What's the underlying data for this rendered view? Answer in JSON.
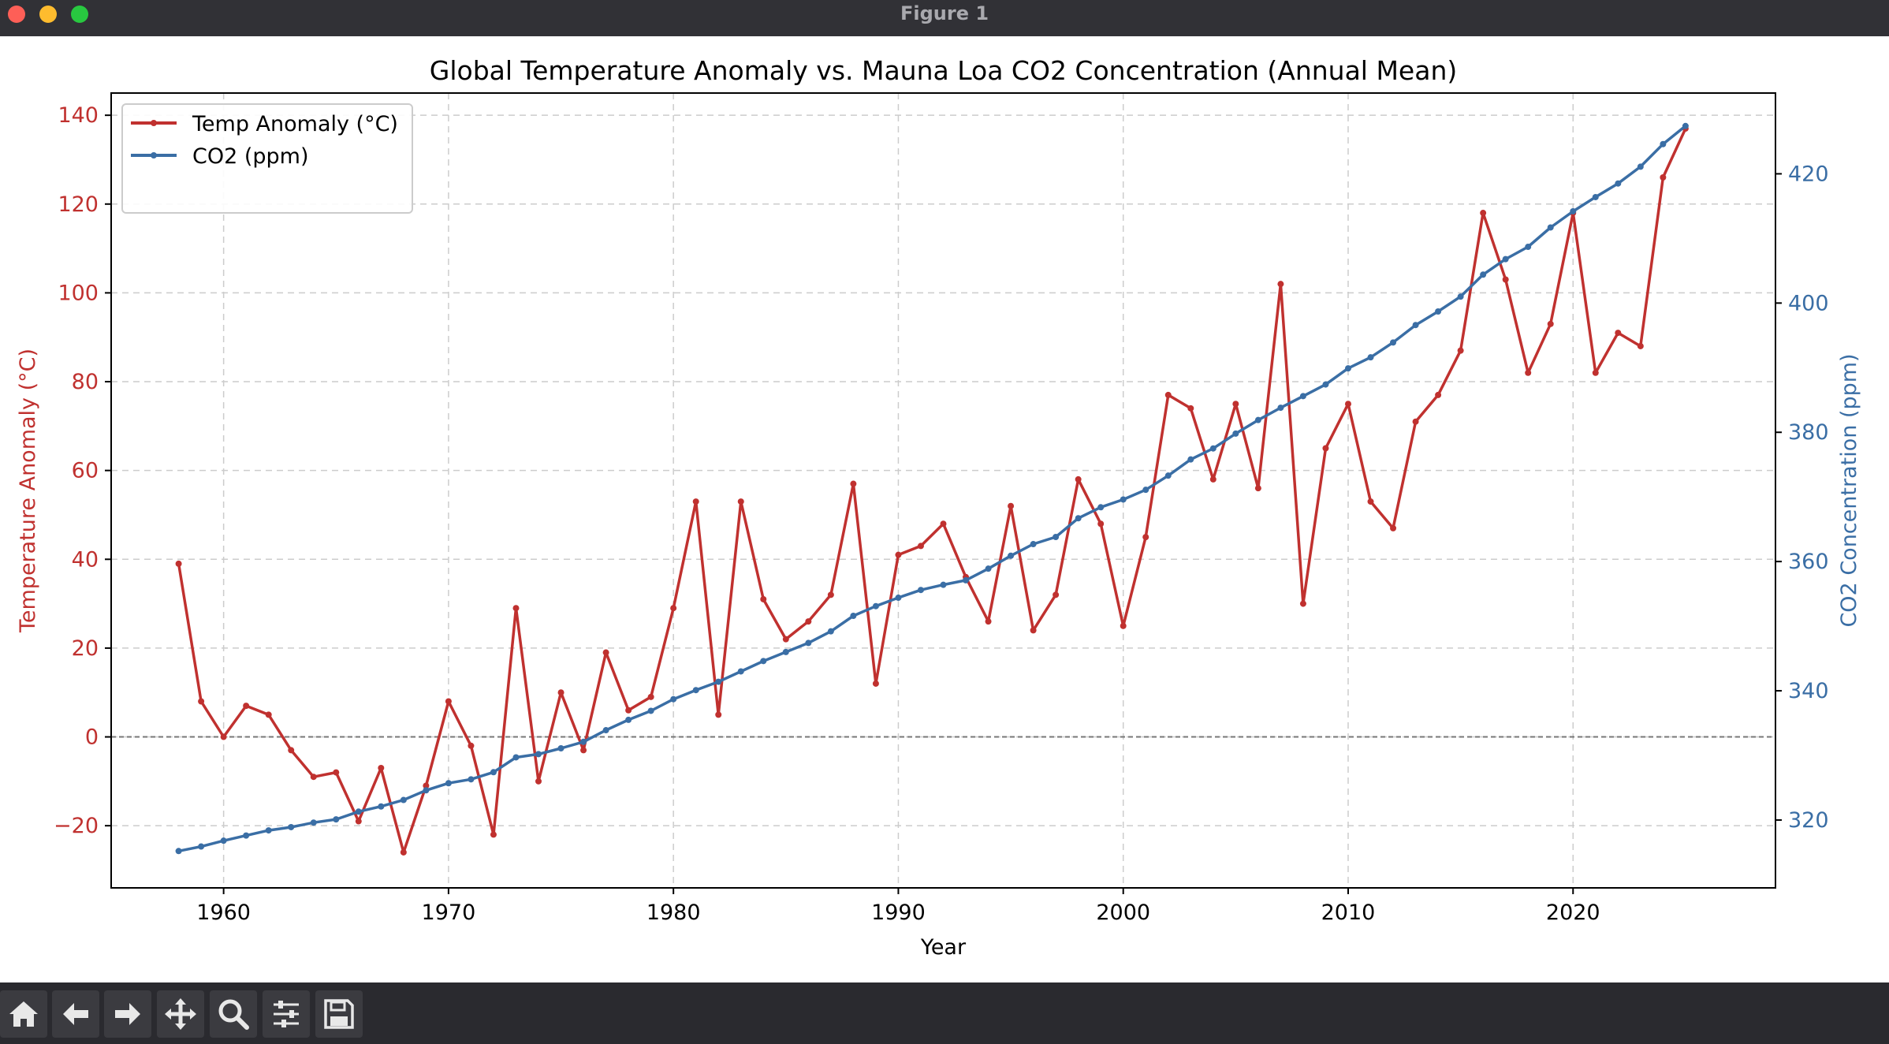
{
  "window": {
    "title": "Figure 1"
  },
  "toolbar": {
    "buttons": [
      {
        "name": "home-button",
        "icon": "home-icon"
      },
      {
        "name": "back-button",
        "icon": "arrow-left-icon"
      },
      {
        "name": "forward-button",
        "icon": "arrow-right-icon"
      },
      {
        "name": "pan-button",
        "icon": "move-icon"
      },
      {
        "name": "zoom-button",
        "icon": "magnifier-icon"
      },
      {
        "name": "configure-subplots-button",
        "icon": "sliders-icon"
      },
      {
        "name": "save-button",
        "icon": "floppy-disk-icon"
      }
    ]
  },
  "chart_data": {
    "type": "line",
    "title": "Global Temperature Anomaly vs. Mauna Loa CO2 Concentration (Annual Mean)",
    "xlabel": "Year",
    "ylabel": "Temperature Anomaly (°C)",
    "y2label": "CO2 Concentration (ppm)",
    "xlim": [
      1955,
      2029
    ],
    "ylim": [
      -34,
      145
    ],
    "y2lim": [
      309.5,
      432.5
    ],
    "xticks": [
      1960,
      1970,
      1980,
      1990,
      2000,
      2010,
      2020
    ],
    "yticks": [
      -20,
      0,
      20,
      40,
      60,
      80,
      100,
      120,
      140
    ],
    "y2ticks": [
      320,
      340,
      360,
      380,
      400,
      420
    ],
    "grid": true,
    "zero_line": 0,
    "legend_placement": "upper-left",
    "colors": {
      "temp": "#c0312f",
      "co2": "#3a6ea5",
      "grid": "#cccccc",
      "zero": "#777777"
    },
    "x": [
      1958,
      1959,
      1960,
      1961,
      1962,
      1963,
      1964,
      1965,
      1966,
      1967,
      1968,
      1969,
      1970,
      1971,
      1972,
      1973,
      1974,
      1975,
      1976,
      1977,
      1978,
      1979,
      1980,
      1981,
      1982,
      1983,
      1984,
      1985,
      1986,
      1987,
      1988,
      1989,
      1990,
      1991,
      1992,
      1993,
      1994,
      1995,
      1996,
      1997,
      1998,
      1999,
      2000,
      2001,
      2002,
      2003,
      2004,
      2005,
      2006,
      2007,
      2008,
      2009,
      2010,
      2011,
      2012,
      2013,
      2014,
      2015,
      2016,
      2017,
      2018,
      2019,
      2020,
      2021,
      2022,
      2023,
      2024,
      2025
    ],
    "series": [
      {
        "name": "Temp Anomaly (°C)",
        "axis": "left",
        "values": [
          39,
          8,
          0,
          7,
          5,
          -3,
          -9,
          -8,
          -19,
          -7,
          -26,
          -11,
          8,
          -2,
          -22,
          29,
          -10,
          10,
          -3,
          19,
          6,
          9,
          29,
          53,
          5,
          53,
          31,
          22,
          26,
          32,
          57,
          12,
          41,
          43,
          48,
          36,
          26,
          52,
          24,
          32,
          58,
          48,
          25,
          45,
          77,
          74,
          58,
          75,
          56,
          102,
          30,
          65,
          75,
          53,
          47,
          71,
          77,
          87,
          118,
          103,
          82,
          93,
          118,
          82,
          91,
          88,
          126,
          137
        ]
      },
      {
        "name": "CO2 (ppm)",
        "axis": "right",
        "values": [
          315.2,
          315.9,
          316.8,
          317.6,
          318.4,
          318.9,
          319.6,
          320.1,
          321.3,
          322.1,
          323.1,
          324.6,
          325.7,
          326.3,
          327.4,
          329.7,
          330.2,
          331.1,
          332.1,
          333.9,
          335.5,
          336.9,
          338.7,
          340.1,
          341.4,
          343.0,
          344.6,
          346.0,
          347.4,
          349.2,
          351.6,
          353.1,
          354.4,
          355.6,
          356.4,
          357.1,
          358.9,
          360.9,
          362.7,
          363.8,
          366.7,
          368.4,
          369.6,
          371.1,
          373.3,
          375.8,
          377.5,
          379.8,
          381.9,
          383.8,
          385.6,
          387.4,
          389.9,
          391.6,
          393.9,
          396.6,
          398.7,
          401.0,
          404.4,
          406.8,
          408.7,
          411.7,
          414.2,
          416.4,
          418.5,
          421.1,
          424.6,
          427.4
        ]
      }
    ]
  }
}
